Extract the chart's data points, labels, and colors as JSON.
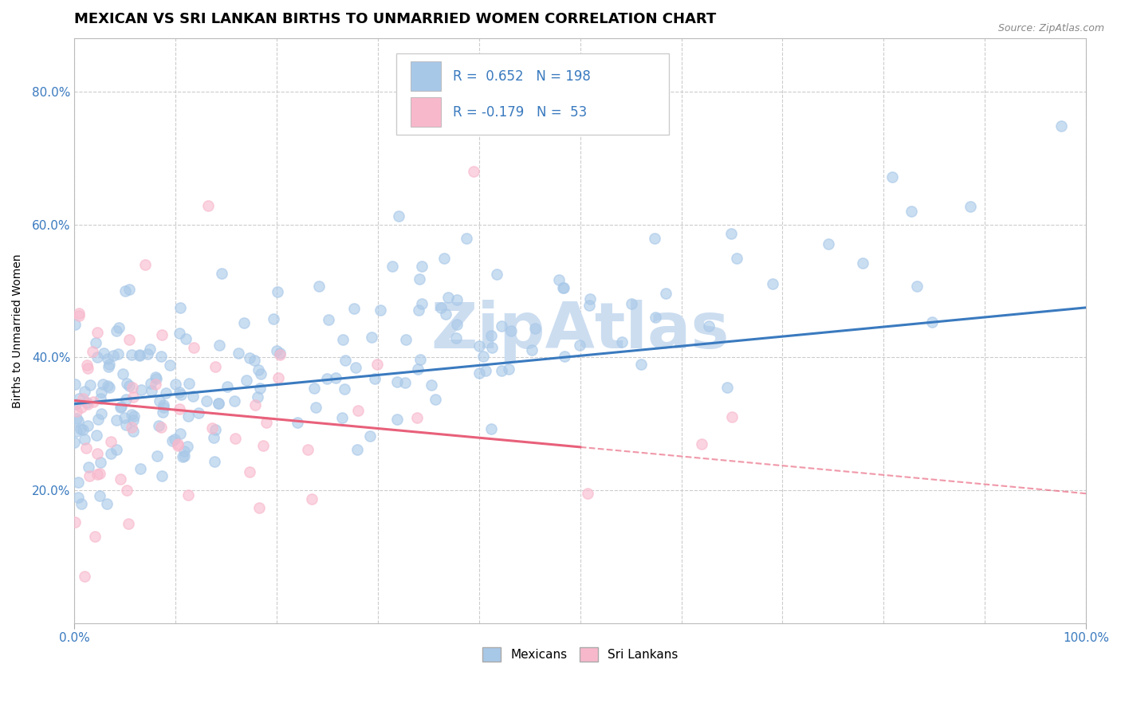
{
  "title": "MEXICAN VS SRI LANKAN BIRTHS TO UNMARRIED WOMEN CORRELATION CHART",
  "source": "Source: ZipAtlas.com",
  "ylabel": "Births to Unmarried Women",
  "xlabel": "",
  "xlim": [
    0.0,
    1.0
  ],
  "ylim": [
    0.0,
    0.88
  ],
  "mexican_R": 0.652,
  "mexican_N": 198,
  "srilankan_R": -0.179,
  "srilankan_N": 53,
  "mexican_color": "#a8c8e8",
  "srilankan_color": "#f8b8cc",
  "mexican_line_color": "#3a7abf",
  "srilankan_line_color": "#e8607a",
  "background_color": "#ffffff",
  "grid_color": "#cccccc",
  "title_fontsize": 13,
  "axis_label_fontsize": 10,
  "tick_color": "#3a7abf",
  "watermark_text": "ZipAtlas",
  "watermark_color": "#ccddf0",
  "legend_R_color": "#3a7abf",
  "tick_label_fontsize": 11,
  "mex_line_y0": 0.33,
  "mex_line_y1": 0.475,
  "sri_line_y0": 0.335,
  "sri_line_y1": 0.195
}
